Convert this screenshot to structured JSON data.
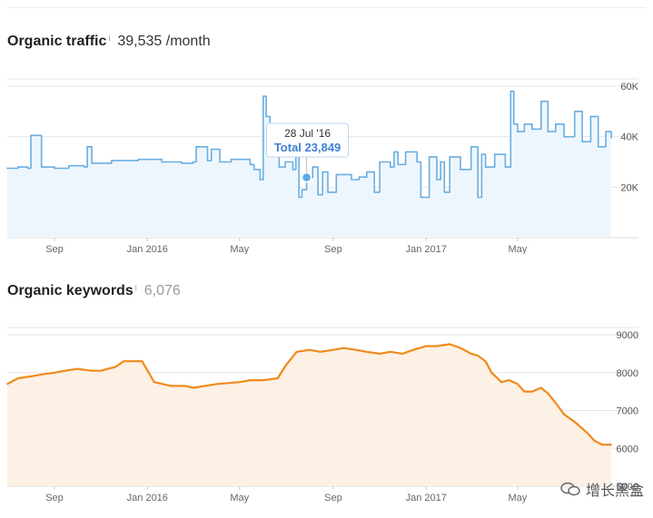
{
  "header1": {
    "title": "Organic traffic",
    "info": "i",
    "value": "39,535 /month"
  },
  "header2": {
    "title": "Organic keywords",
    "info": "i",
    "value": "6,076"
  },
  "watermark": "增长黑盒",
  "colors": {
    "traffic_line": "#6aaee0",
    "traffic_fill": "#eef6fd",
    "keywords_line": "#f08a1c",
    "keywords_fill": "#fdf0e4",
    "tooltip_dot": "#5aa8e6",
    "tooltip_text": "#3f7fd0"
  },
  "chart_data": [
    {
      "type": "area",
      "title": "Organic traffic",
      "x_ticks": [
        "Sep",
        "Jan 2016",
        "May",
        "Sep",
        "Jan 2017",
        "May"
      ],
      "y_ticks": [
        "20K",
        "40K",
        "60K"
      ],
      "ylim": [
        0,
        60000
      ],
      "grid": true,
      "tooltip": {
        "date": "28 Jul '16",
        "label": "Total 23,849",
        "value": 23849
      },
      "x": [
        "2015-07-01",
        "2015-07-15",
        "2015-07-28",
        "2015-08-01",
        "2015-08-15",
        "2015-09-01",
        "2015-09-20",
        "2015-10-10",
        "2015-10-14",
        "2015-10-20",
        "2015-11-15",
        "2015-12-20",
        "2016-01-20",
        "2016-02-15",
        "2016-03-01",
        "2016-03-05",
        "2016-03-20",
        "2016-03-25",
        "2016-04-05",
        "2016-04-20",
        "2016-05-15",
        "2016-05-20",
        "2016-05-28",
        "2016-06-01",
        "2016-06-05",
        "2016-06-10",
        "2016-06-15",
        "2016-06-22",
        "2016-06-30",
        "2016-07-10",
        "2016-07-14",
        "2016-07-18",
        "2016-07-22",
        "2016-07-28",
        "2016-08-05",
        "2016-08-12",
        "2016-08-18",
        "2016-08-25",
        "2016-09-05",
        "2016-09-15",
        "2016-09-25",
        "2016-10-05",
        "2016-10-15",
        "2016-10-25",
        "2016-11-01",
        "2016-11-15",
        "2016-11-20",
        "2016-11-25",
        "2016-12-05",
        "2016-12-20",
        "2016-12-25",
        "2017-01-05",
        "2017-01-15",
        "2017-01-20",
        "2017-01-25",
        "2017-02-01",
        "2017-02-15",
        "2017-03-01",
        "2017-03-10",
        "2017-03-15",
        "2017-03-20",
        "2017-04-01",
        "2017-04-15",
        "2017-04-22",
        "2017-04-26",
        "2017-05-01",
        "2017-05-10",
        "2017-05-20",
        "2017-06-01",
        "2017-06-10",
        "2017-06-20",
        "2017-07-01",
        "2017-07-15",
        "2017-07-25",
        "2017-08-05",
        "2017-08-15",
        "2017-08-25",
        "2017-09-01"
      ],
      "values": [
        27500,
        28000,
        27500,
        40500,
        28000,
        27500,
        28500,
        28000,
        36000,
        29500,
        30500,
        31000,
        30000,
        29500,
        30000,
        36000,
        30500,
        35000,
        30000,
        31000,
        29000,
        27000,
        23000,
        56000,
        48000,
        38000,
        43000,
        28000,
        30000,
        27000,
        37000,
        16000,
        19000,
        23849,
        28000,
        17000,
        26000,
        18000,
        25000,
        25000,
        23000,
        24000,
        26000,
        18000,
        30000,
        28000,
        34000,
        29000,
        34000,
        30000,
        16000,
        32000,
        23000,
        30000,
        18000,
        32000,
        27000,
        36000,
        16000,
        33000,
        28000,
        33000,
        28000,
        58000,
        45000,
        42000,
        45000,
        43000,
        54000,
        42000,
        45000,
        40000,
        50000,
        38000,
        48000,
        36000,
        42000,
        39535
      ]
    },
    {
      "type": "area",
      "title": "Organic keywords",
      "x_ticks": [
        "Sep",
        "Jan 2016",
        "May",
        "Sep",
        "Jan 2017",
        "May"
      ],
      "y_ticks": [
        "5000",
        "6000",
        "7000",
        "8000",
        "9000"
      ],
      "ylim": [
        5000,
        9000
      ],
      "grid": true,
      "x": [
        "2015-07-01",
        "2015-07-15",
        "2015-08-01",
        "2015-08-15",
        "2015-09-01",
        "2015-09-15",
        "2015-10-01",
        "2015-10-20",
        "2015-11-01",
        "2015-11-10",
        "2015-11-20",
        "2015-12-01",
        "2015-12-10",
        "2015-12-25",
        "2016-01-10",
        "2016-02-01",
        "2016-02-20",
        "2016-03-01",
        "2016-04-01",
        "2016-05-01",
        "2016-05-15",
        "2016-06-01",
        "2016-06-20",
        "2016-07-01",
        "2016-07-15",
        "2016-08-01",
        "2016-08-15",
        "2016-09-01",
        "2016-09-15",
        "2016-10-01",
        "2016-10-15",
        "2016-11-01",
        "2016-11-15",
        "2016-12-01",
        "2016-12-15",
        "2017-01-01",
        "2017-01-15",
        "2017-02-01",
        "2017-02-15",
        "2017-03-01",
        "2017-03-10",
        "2017-03-20",
        "2017-03-28",
        "2017-04-10",
        "2017-04-20",
        "2017-05-01",
        "2017-05-10",
        "2017-05-20",
        "2017-06-01",
        "2017-06-10",
        "2017-06-20",
        "2017-07-01",
        "2017-07-15",
        "2017-08-01",
        "2017-08-10",
        "2017-08-20",
        "2017-09-01"
      ],
      "values": [
        7700,
        7850,
        7900,
        7950,
        8000,
        8050,
        8100,
        8050,
        8050,
        8100,
        8150,
        8300,
        8300,
        8300,
        7750,
        7650,
        7650,
        7600,
        7700,
        7750,
        7800,
        7800,
        7850,
        8200,
        8550,
        8600,
        8550,
        8600,
        8650,
        8600,
        8550,
        8500,
        8550,
        8500,
        8600,
        8700,
        8700,
        8750,
        8650,
        8500,
        8450,
        8300,
        8000,
        7750,
        7800,
        7700,
        7500,
        7500,
        7600,
        7450,
        7200,
        6900,
        6700,
        6400,
        6200,
        6100,
        6100
      ]
    }
  ]
}
